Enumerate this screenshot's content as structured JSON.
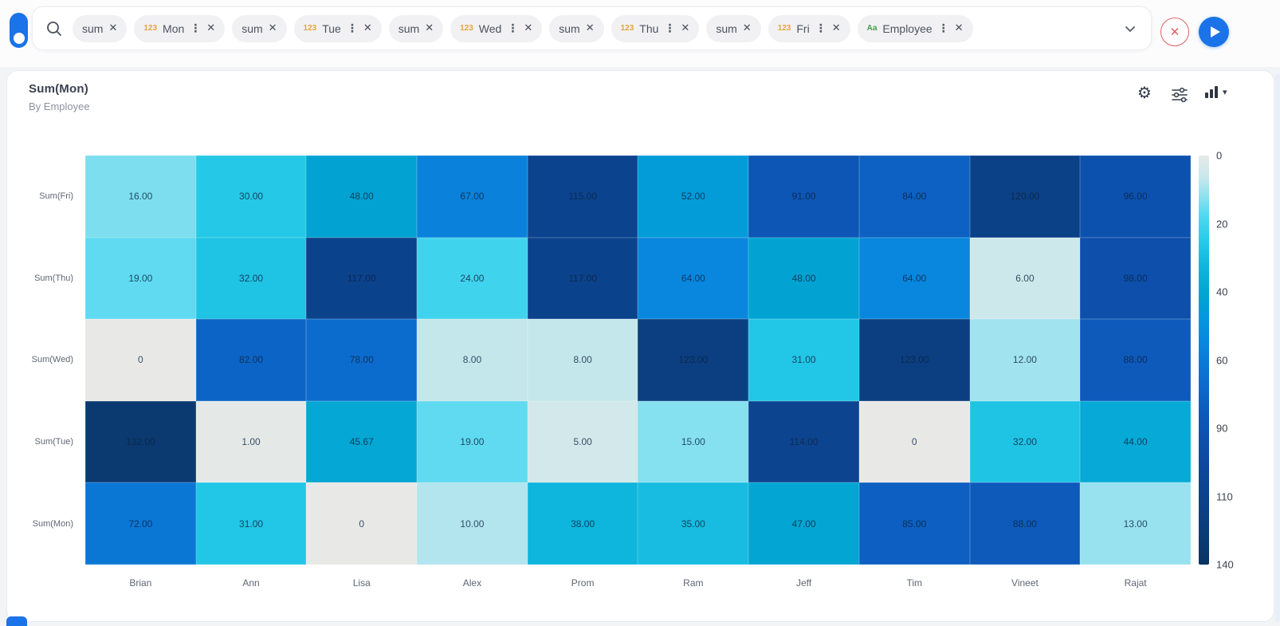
{
  "icons": {
    "menu_dots": "⋮",
    "remove": "✕",
    "gear": "⚙",
    "caret_down": "▾"
  },
  "colors": {
    "accent_blue": "#1a73e8",
    "cancel_red": "#e06060",
    "numeric_chip_prefix": "#e8a33d",
    "text_chip_prefix": "#43a047"
  },
  "toolbar": {
    "chips": [
      {
        "label": "sum"
      },
      {
        "label": "Mon",
        "prefix": "123",
        "prefix_color": "#e8a33d",
        "menu": true
      },
      {
        "label": "sum"
      },
      {
        "label": "Tue",
        "prefix": "123",
        "prefix_color": "#e8a33d",
        "menu": true
      },
      {
        "label": "sum"
      },
      {
        "label": "Wed",
        "prefix": "123",
        "prefix_color": "#e8a33d",
        "menu": true
      },
      {
        "label": "sum"
      },
      {
        "label": "Thu",
        "prefix": "123",
        "prefix_color": "#e8a33d",
        "menu": true
      },
      {
        "label": "sum"
      },
      {
        "label": "Fri",
        "prefix": "123",
        "prefix_color": "#e8a33d",
        "menu": true
      },
      {
        "label": "Employee",
        "prefix": "Aa",
        "prefix_color": "#43a047",
        "menu": true
      }
    ]
  },
  "chart_header": {
    "title": "Sum(Mon)",
    "subtitle": "By Employee"
  },
  "chart_data": {
    "type": "heatmap",
    "title": "Sum(Mon)",
    "subtitle": "By Employee",
    "x_categories": [
      "Brian",
      "Ann",
      "Lisa",
      "Alex",
      "Prom",
      "Ram",
      "Jeff",
      "Tim",
      "Vineet",
      "Rajat"
    ],
    "y_categories": [
      "Sum(Fri)",
      "Sum(Thu)",
      "Sum(Wed)",
      "Sum(Tue)",
      "Sum(Mon)"
    ],
    "rows": [
      {
        "label": "Sum(Fri)",
        "values": [
          16,
          30,
          48,
          67,
          115,
          52,
          91,
          84,
          120,
          96
        ],
        "display": [
          "16.00",
          "30.00",
          "48.00",
          "67.00",
          "115.00",
          "52.00",
          "91.00",
          "84.00",
          "120.00",
          "96.00"
        ]
      },
      {
        "label": "Sum(Thu)",
        "values": [
          19,
          32,
          117,
          24,
          117,
          64,
          48,
          64,
          6,
          98
        ],
        "display": [
          "19.00",
          "32.00",
          "117.00",
          "24.00",
          "117.00",
          "64.00",
          "48.00",
          "64.00",
          "6.00",
          "98.00"
        ]
      },
      {
        "label": "Sum(Wed)",
        "values": [
          0,
          82,
          78,
          8,
          8,
          123,
          31,
          123,
          12,
          88
        ],
        "display": [
          "0",
          "82.00",
          "78.00",
          "8.00",
          "8.00",
          "123.00",
          "31.00",
          "123.00",
          "12.00",
          "88.00"
        ]
      },
      {
        "label": "Sum(Tue)",
        "values": [
          132,
          1,
          45.67,
          19,
          5,
          15,
          114,
          0,
          32,
          44
        ],
        "display": [
          "132.00",
          "1.00",
          "45.67",
          "19.00",
          "5.00",
          "15.00",
          "114.00",
          "0",
          "32.00",
          "44.00"
        ]
      },
      {
        "label": "Sum(Mon)",
        "values": [
          72,
          31,
          0,
          10,
          38,
          35,
          47,
          85,
          88,
          13
        ],
        "display": [
          "72.00",
          "31.00",
          "0",
          "10.00",
          "38.00",
          "35.00",
          "47.00",
          "85.00",
          "88.00",
          "13.00"
        ]
      }
    ],
    "colorbar": {
      "min": 0,
      "max": 140,
      "ticks": [
        "0",
        "20",
        "40",
        "60",
        "90",
        "110",
        "140"
      ],
      "position": "right"
    },
    "color_stops": [
      [
        0,
        "#e8e9e7"
      ],
      [
        8,
        "#c4e7ec"
      ],
      [
        14,
        "#8fe1ef"
      ],
      [
        20,
        "#55d9f0"
      ],
      [
        28,
        "#2bcdea"
      ],
      [
        38,
        "#0eb5dc"
      ],
      [
        48,
        "#02a3d2"
      ],
      [
        56,
        "#0495e0"
      ],
      [
        66,
        "#0a84dd"
      ],
      [
        76,
        "#0c6fd0"
      ],
      [
        90,
        "#0d57b8"
      ],
      [
        105,
        "#0d489e"
      ],
      [
        120,
        "#0b4187"
      ],
      [
        132,
        "#0a3a70"
      ],
      [
        140,
        "#093462"
      ]
    ],
    "grid": false,
    "legend_position": "right"
  }
}
